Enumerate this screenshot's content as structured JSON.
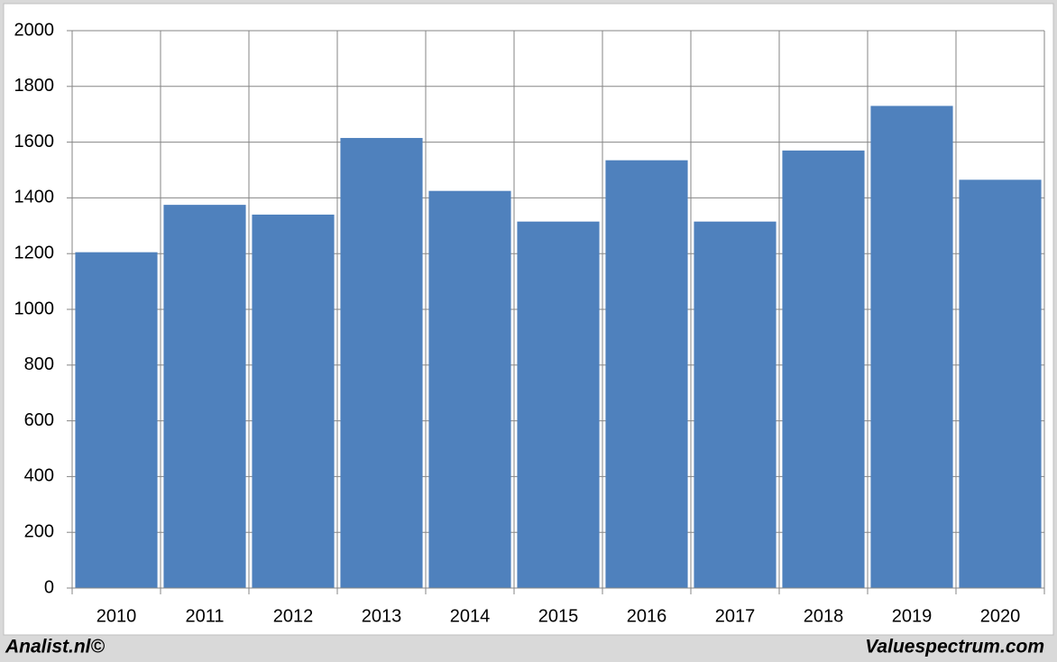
{
  "chart_data": {
    "type": "bar",
    "categories": [
      "2010",
      "2011",
      "2012",
      "2013",
      "2014",
      "2015",
      "2016",
      "2017",
      "2018",
      "2019",
      "2020"
    ],
    "values": [
      1205,
      1375,
      1340,
      1615,
      1425,
      1315,
      1535,
      1315,
      1570,
      1730,
      1465
    ],
    "color": "#4f81bd",
    "ylim": [
      0,
      2000
    ],
    "yticks": [
      0,
      200,
      400,
      600,
      800,
      1000,
      1200,
      1400,
      1600,
      1800,
      2000
    ],
    "grid": true,
    "annotations": [
      "Analist.nl©",
      "Valuespectrum.com"
    ]
  }
}
